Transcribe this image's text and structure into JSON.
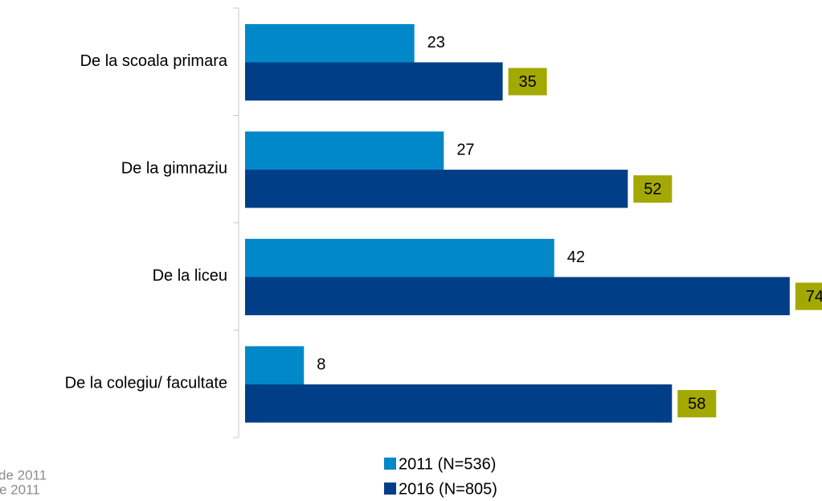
{
  "chart_data": {
    "type": "hbar",
    "categories": [
      "De la scoala primara",
      "De la gimnaziu",
      "De la liceu",
      "De la colegiu/ facultate"
    ],
    "series": [
      {
        "name": "2011 (N=536)",
        "color": "#0088c8",
        "values": [
          23,
          27,
          42,
          8
        ]
      },
      {
        "name": "2016 (N=805)",
        "color": "#003f87",
        "values": [
          35,
          52,
          74,
          58
        ],
        "label_box": "#a3a900"
      }
    ],
    "xlim": [
      0,
      100
    ],
    "legend": "bottom",
    "notes": [
      "de 2011",
      "e 2011"
    ]
  }
}
